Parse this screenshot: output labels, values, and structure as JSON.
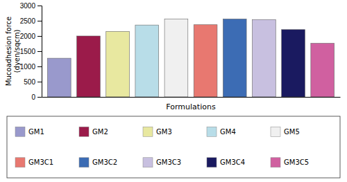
{
  "chart_data": {
    "type": "bar",
    "categories": [
      "GM1",
      "GM2",
      "GM3",
      "GM4",
      "GM5",
      "GM3C1",
      "GM3C2",
      "GM3C3",
      "GM3C4",
      "GM3C5"
    ],
    "values": [
      1270,
      2000,
      2150,
      2360,
      2560,
      2370,
      2560,
      2540,
      2210,
      1760
    ],
    "colors": [
      "#9999cc",
      "#9b1b4a",
      "#e8e8a0",
      "#b8dde8",
      "#f0f0f0",
      "#e87870",
      "#3c6cb4",
      "#c8c0e0",
      "#1a1a60",
      "#d060a0"
    ],
    "xlabel": "Formulations",
    "ylabel": "Mucoadhesion force\n(dyen/sqcm)",
    "ylim": [
      0,
      3000
    ],
    "yticks": [
      0,
      500,
      1000,
      1500,
      2000,
      2500,
      3000
    ],
    "grid": false,
    "tick_labels": "y",
    "legend": "bottom"
  }
}
